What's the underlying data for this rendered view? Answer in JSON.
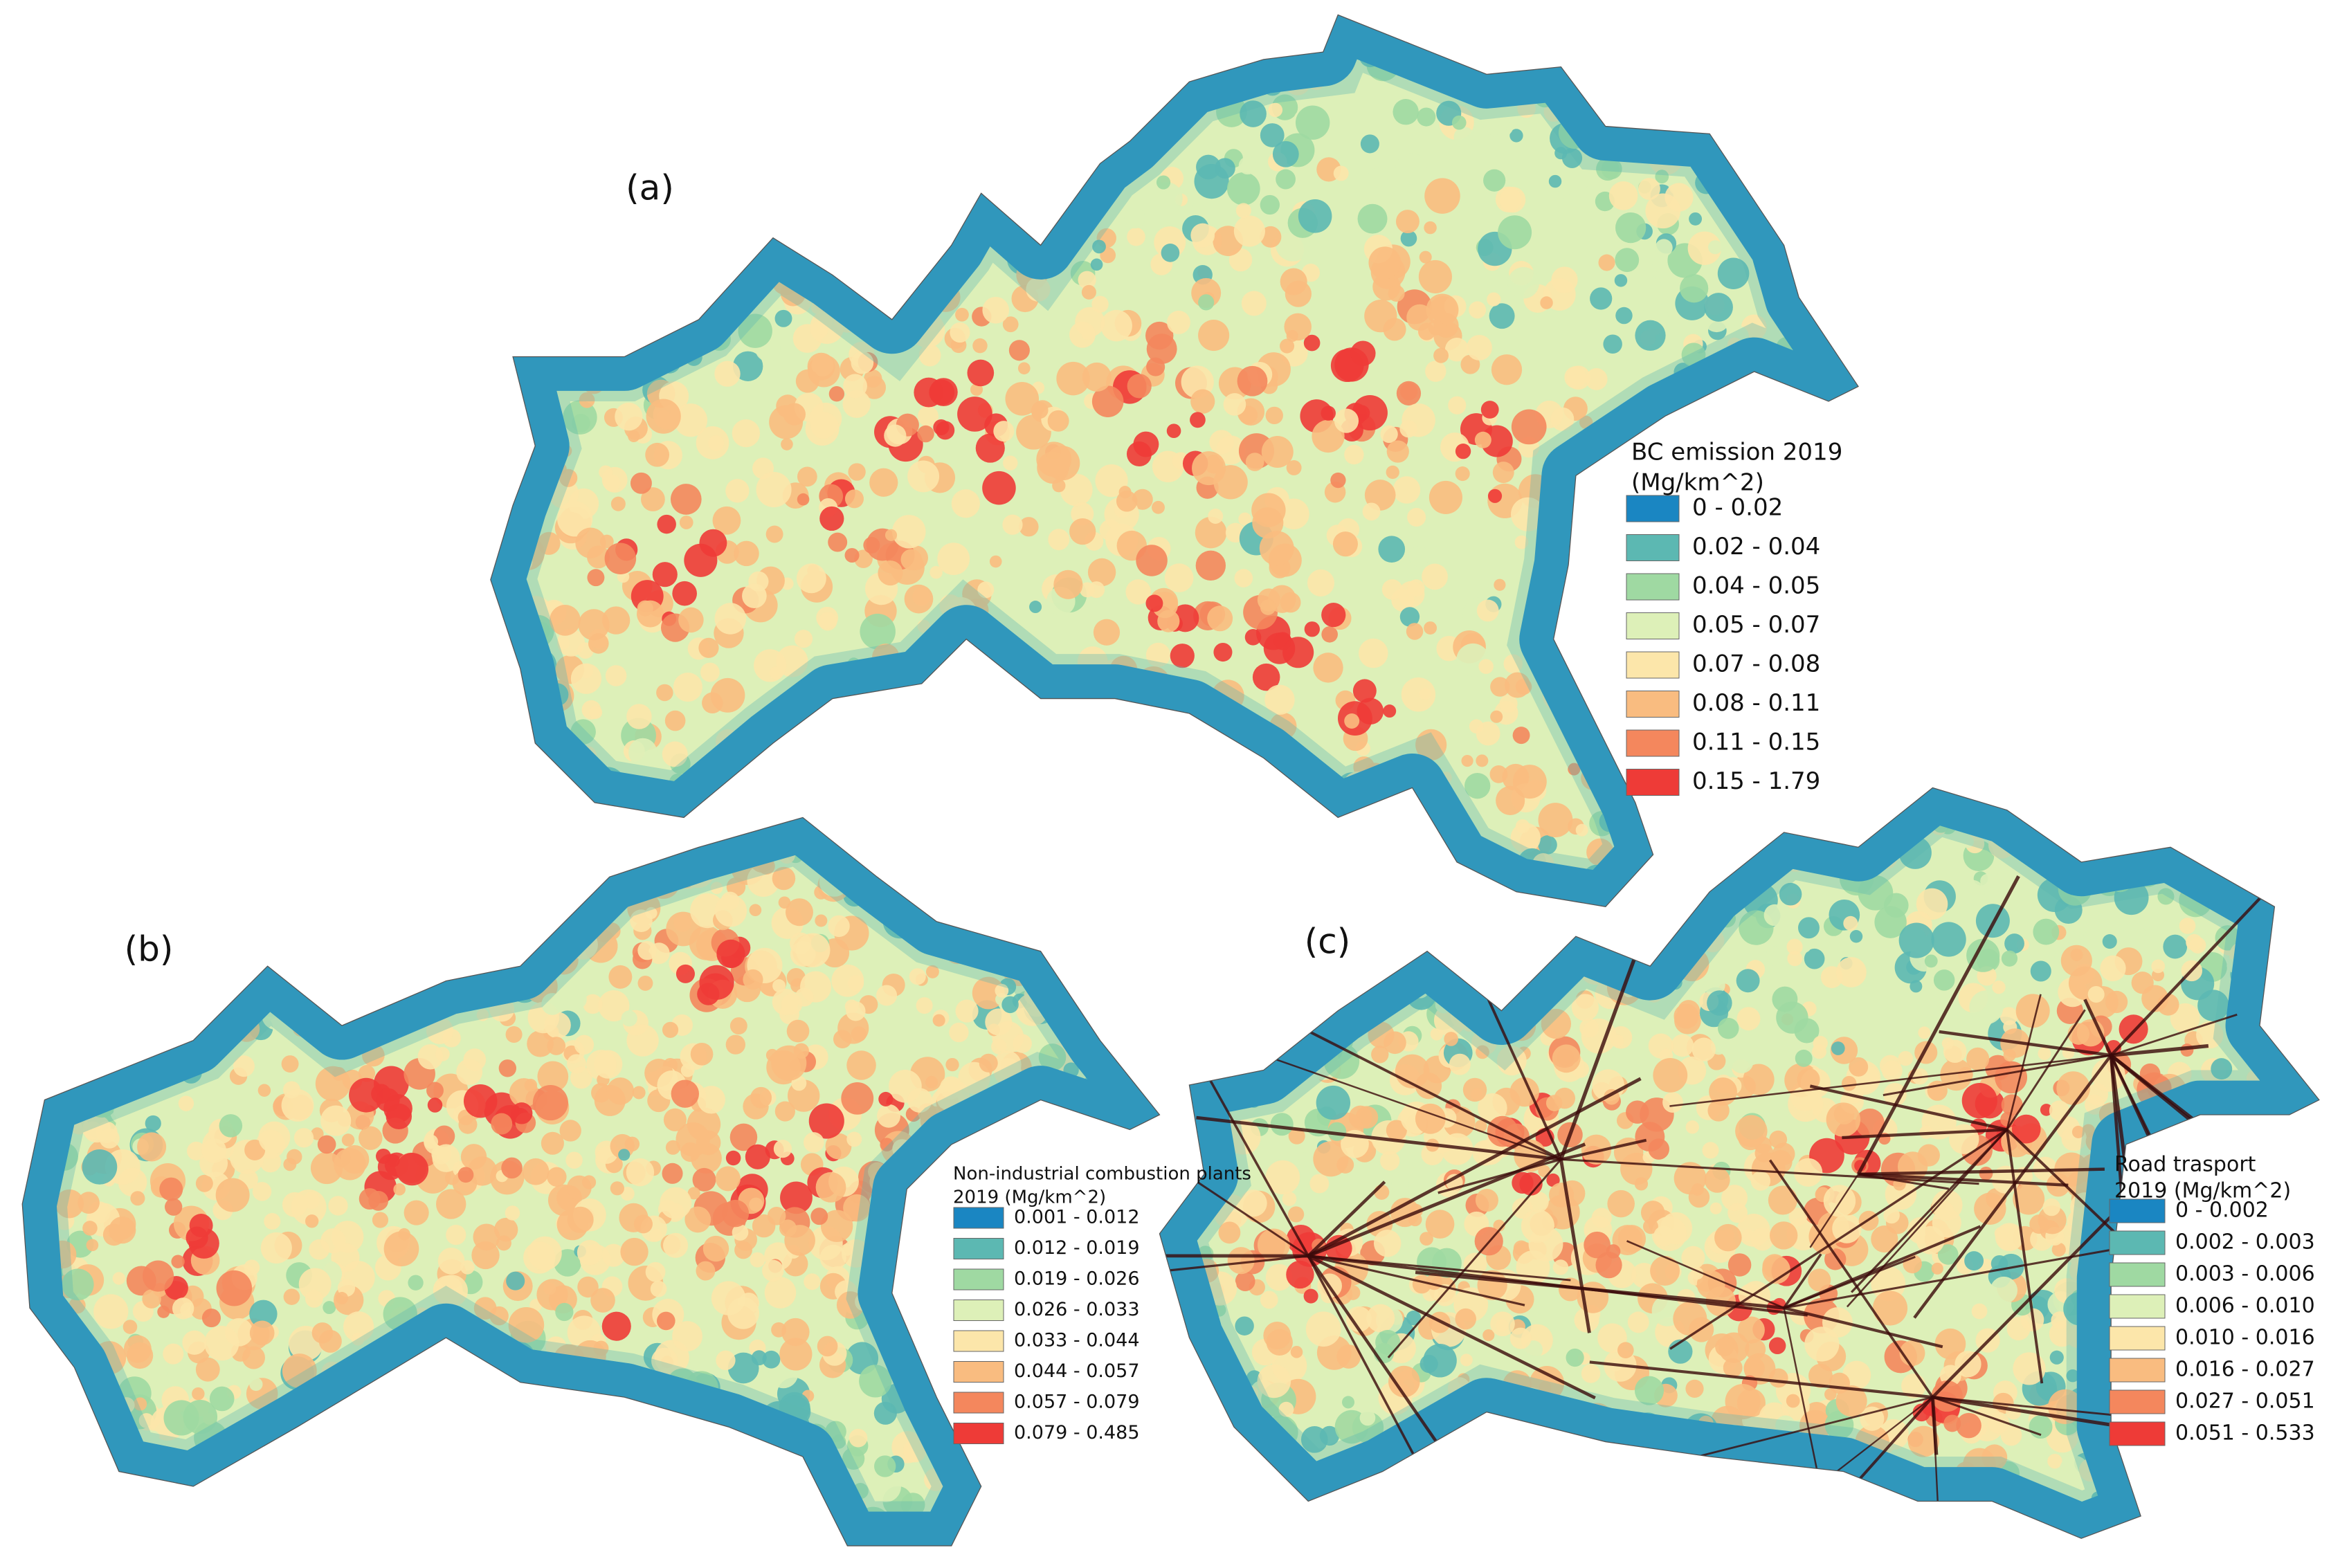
{
  "panels": [
    {
      "label": "(a)",
      "legend": {
        "title": [
          "BC emission 2019",
          "(Mg/km^2)"
        ],
        "items": [
          {
            "label": "0 - 0.02",
            "color": "#1a86c2"
          },
          {
            "label": "0.02 - 0.04",
            "color": "#5cb8b2"
          },
          {
            "label": "0.04 - 0.05",
            "color": "#9fd9a2"
          },
          {
            "label": "0.05 - 0.07",
            "color": "#ddf0b8"
          },
          {
            "label": "0.07 - 0.08",
            "color": "#fce6aa"
          },
          {
            "label": "0.08 - 0.11",
            "color": "#f9bc80"
          },
          {
            "label": "0.11 - 0.15",
            "color": "#f4875d"
          },
          {
            "label": "0.15 - 1.79",
            "color": "#ee3b37"
          }
        ]
      }
    },
    {
      "label": "(b)",
      "legend": {
        "title": [
          "Non-industrial combustion plants",
          "2019 (Mg/km^2)"
        ],
        "items": [
          {
            "label": "0.001 - 0.012",
            "color": "#1a86c2"
          },
          {
            "label": "0.012 - 0.019",
            "color": "#5cb8b2"
          },
          {
            "label": "0.019 - 0.026",
            "color": "#9fd9a2"
          },
          {
            "label": "0.026 - 0.033",
            "color": "#ddf0b8"
          },
          {
            "label": "0.033 - 0.044",
            "color": "#fce6aa"
          },
          {
            "label": "0.044 - 0.057",
            "color": "#f9bc80"
          },
          {
            "label": "0.057 - 0.079",
            "color": "#f4875d"
          },
          {
            "label": "0.079 - 0.485",
            "color": "#ee3b37"
          }
        ]
      }
    },
    {
      "label": "(c)",
      "legend": {
        "title": [
          "Road trasport",
          "2019 (Mg/km^2)"
        ],
        "items": [
          {
            "label": "0 - 0.002",
            "color": "#1a86c2"
          },
          {
            "label": "0.002 - 0.003",
            "color": "#5cb8b2"
          },
          {
            "label": "0.003 - 0.006",
            "color": "#9fd9a2"
          },
          {
            "label": "0.006 - 0.010",
            "color": "#ddf0b8"
          },
          {
            "label": "0.010 - 0.016",
            "color": "#fce6aa"
          },
          {
            "label": "0.016 - 0.027",
            "color": "#f9bc80"
          },
          {
            "label": "0.027 - 0.051",
            "color": "#f4875d"
          },
          {
            "label": "0.051 - 0.533",
            "color": "#ee3b37"
          }
        ]
      }
    }
  ]
}
